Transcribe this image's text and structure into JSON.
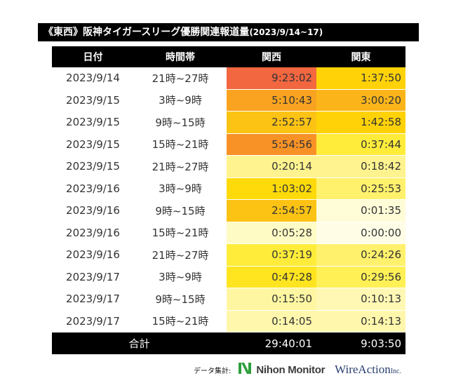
{
  "chart_data": {
    "type": "table",
    "title": "《東西》阪神タイガースリーグ優勝関連報道量",
    "subtitle": "(2023/9/14~17)",
    "columns": [
      "日付",
      "時間帯",
      "関西",
      "関東"
    ],
    "rows": [
      {
        "date": "2023/9/14",
        "slot": "21時~27時",
        "kansai": "9:23:02",
        "kanto": "1:37:50",
        "kansai_color": "#f26640",
        "kanto_color": "#ffd208"
      },
      {
        "date": "2023/9/15",
        "slot": "3時~9時",
        "kansai": "5:10:43",
        "kanto": "3:00:20",
        "kansai_color": "#f9a320",
        "kanto_color": "#fbb51a"
      },
      {
        "date": "2023/9/15",
        "slot": "9時~15時",
        "kansai": "2:52:57",
        "kanto": "1:42:58",
        "kansai_color": "#fcc314",
        "kanto_color": "#ffd208"
      },
      {
        "date": "2023/9/15",
        "slot": "15時~21時",
        "kansai": "5:54:56",
        "kanto": "0:37:44",
        "kansai_color": "#f89226",
        "kanto_color": "#ffec3a"
      },
      {
        "date": "2023/9/15",
        "slot": "21時~27時",
        "kansai": "0:20:14",
        "kanto": "0:18:42",
        "kansai_color": "#fff38f",
        "kanto_color": "#fff38f"
      },
      {
        "date": "2023/9/16",
        "slot": "3時~9時",
        "kansai": "1:03:02",
        "kanto": "0:25:53",
        "kansai_color": "#ffda0a",
        "kanto_color": "#fff16c"
      },
      {
        "date": "2023/9/16",
        "slot": "9時~15時",
        "kansai": "2:54:57",
        "kanto": "0:01:35",
        "kansai_color": "#fcc314",
        "kanto_color": "#fffcd8"
      },
      {
        "date": "2023/9/16",
        "slot": "15時~21時",
        "kansai": "0:05:28",
        "kanto": "0:00:00",
        "kansai_color": "#fffbc4",
        "kanto_color": "#fffde6"
      },
      {
        "date": "2023/9/16",
        "slot": "21時~27時",
        "kansai": "0:37:19",
        "kanto": "0:24:26",
        "kansai_color": "#ffec3a",
        "kanto_color": "#fff16c"
      },
      {
        "date": "2023/9/17",
        "slot": "3時~9時",
        "kansai": "0:47:28",
        "kanto": "0:29:56",
        "kansai_color": "#ffe420",
        "kanto_color": "#fff056"
      },
      {
        "date": "2023/9/17",
        "slot": "9時~15時",
        "kansai": "0:15:50",
        "kanto": "0:10:13",
        "kansai_color": "#fff6a2",
        "kanto_color": "#fff8b4"
      },
      {
        "date": "2023/9/17",
        "slot": "15時~21時",
        "kansai": "0:14:05",
        "kanto": "0:14:13",
        "kansai_color": "#fff7ac",
        "kanto_color": "#fff7ac"
      }
    ],
    "total": {
      "label": "合計",
      "kansai": "29:40:01",
      "kanto": "9:03:50"
    }
  },
  "credit": {
    "label": "データ集計:",
    "brand1": "Nihon Monitor",
    "brand2": "WireAction",
    "brand2_suffix": "Inc."
  }
}
